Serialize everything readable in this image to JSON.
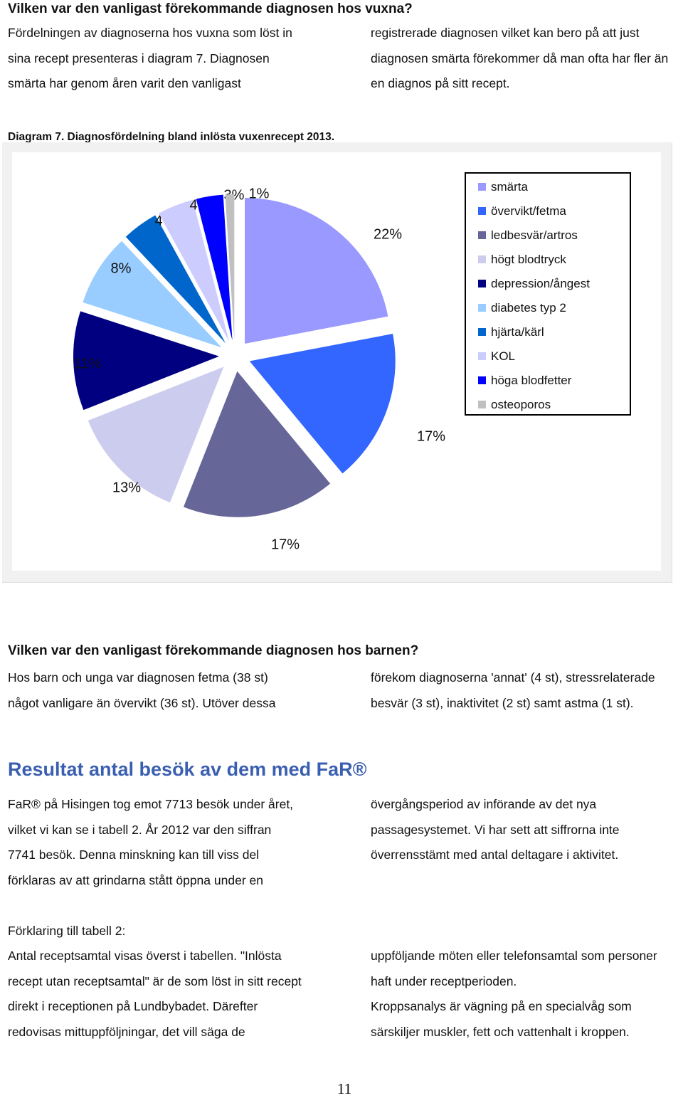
{
  "section1": {
    "heading": "Vilken var den vanligast förekommande diagnosen hos vuxna?",
    "left_lines": [
      "Fördelningen av diagnoserna hos vuxna som löst in",
      "sina recept presenteras i diagram 7. Diagnosen",
      "smärta har genom åren varit den vanligast"
    ],
    "right_lines": [
      "registrerade diagnosen vilket kan bero på att just",
      "diagnosen smärta förekommer då man ofta har fler än",
      "en diagnos på sitt recept."
    ]
  },
  "chart_caption": "Diagram 7. Diagnosfördelning bland inlösta vuxenrecept 2013.",
  "chart_data": {
    "type": "pie",
    "title": "",
    "slices": [
      {
        "name": "smärta",
        "value": 22,
        "label": "22%",
        "color": "#9999ff"
      },
      {
        "name": "övervikt/fetma",
        "value": 17,
        "label": "17%",
        "color": "#3366ff"
      },
      {
        "name": "ledbesvär/artros",
        "value": 17,
        "label": "17%",
        "color": "#666699"
      },
      {
        "name": "högt blodtryck",
        "value": 13,
        "label": "13%",
        "color": "#ccccee"
      },
      {
        "name": "depression/ångest",
        "value": 11,
        "label": "11%",
        "color": "#000080"
      },
      {
        "name": "diabetes typ 2",
        "value": 8,
        "label": "8%",
        "color": "#99ccff"
      },
      {
        "name": "hjärta/kärl",
        "value": 4,
        "label": "4%",
        "color": "#0066cc"
      },
      {
        "name": "KOL",
        "value": 4,
        "label": "4%",
        "color": "#ccccff"
      },
      {
        "name": "höga blodfetter",
        "value": 3,
        "label": "3%",
        "color": "#0000ff"
      },
      {
        "name": "osteoporos",
        "value": 1,
        "label": "1%",
        "color": "#c0c0c0"
      }
    ],
    "legend_position": "right"
  },
  "section2": {
    "heading": "Vilken var den vanligast förekommande diagnosen hos barnen?",
    "left_lines": [
      "Hos barn och unga var diagnosen fetma (38 st)",
      "något vanligare än övervikt (36 st). Utöver dessa"
    ],
    "right_lines": [
      "förekom diagnoserna 'annat' (4 st), stressrelaterade",
      "besvär (3 st), inaktivitet (2 st) samt astma (1 st)."
    ]
  },
  "section3": {
    "title": "Resultat antal besök av dem med FaR®",
    "left_lines": [
      "FaR® på Hisingen tog emot 7713 besök under året,",
      "vilket vi kan se i tabell 2. År 2012 var den siffran",
      "7741 besök. Denna minskning kan till viss del",
      "förklaras av att grindarna stått öppna under en"
    ],
    "right_lines": [
      "övergångsperiod av införande av det nya",
      "passagesystemet. Vi har sett att siffrorna inte",
      "överrensstämt med antal deltagare i aktivitet."
    ]
  },
  "section4": {
    "heading": "Förklaring till tabell 2:",
    "left_lines": [
      "Antal receptsamtal visas överst i tabellen. \"Inlösta",
      "recept utan receptsamtal\" är de som löst in sitt recept",
      "direkt i receptionen på Lundbybadet. Därefter",
      "redovisas mittuppföljningar, det vill säga de"
    ],
    "right_lines": [
      "uppföljande möten eller telefonsamtal som personer",
      "haft under receptperioden.",
      "Kroppsanalys är vägning på en specialvåg som",
      "särskiljer muskler, fett och vattenhalt i kroppen."
    ]
  },
  "page_number": "11"
}
